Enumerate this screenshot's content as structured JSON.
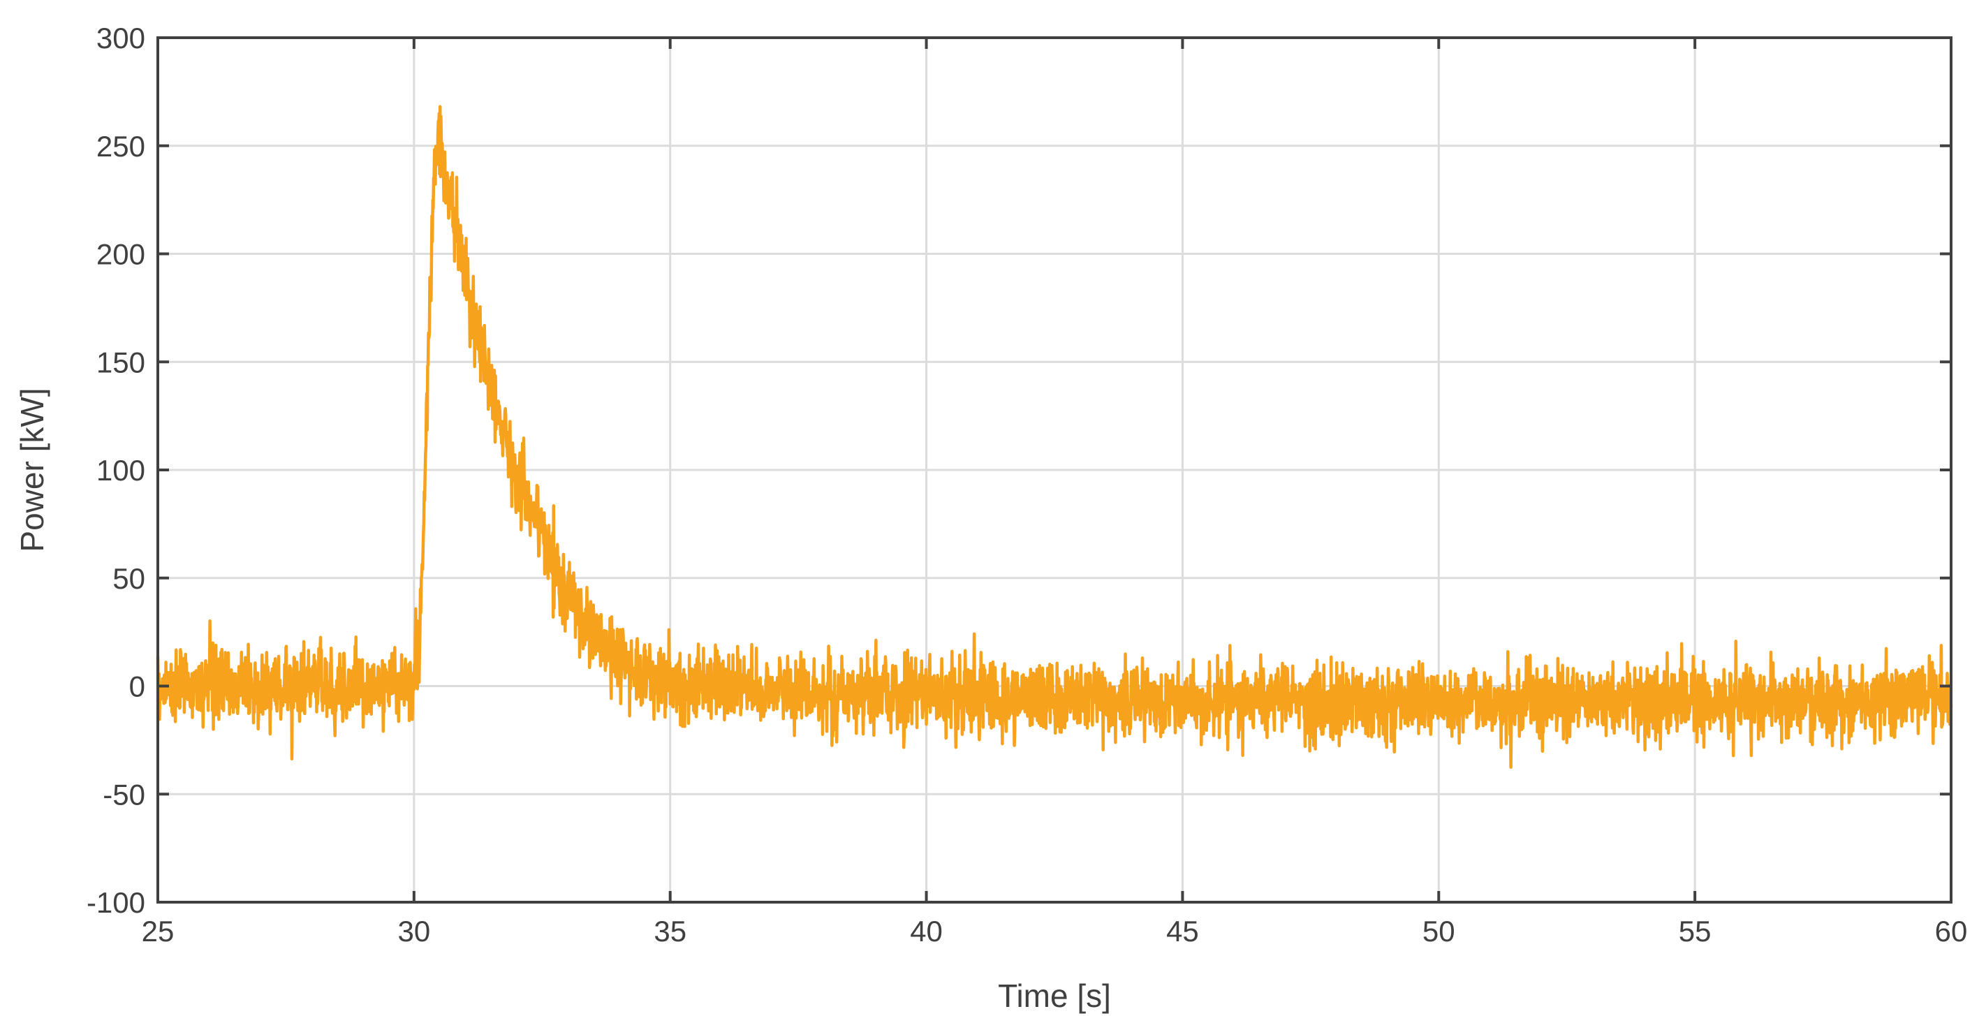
{
  "chart_data": {
    "type": "line",
    "title": "",
    "xlabel": "Time [s]",
    "ylabel": "Power [kW]",
    "xlim": [
      25,
      60
    ],
    "ylim": [
      -100,
      300
    ],
    "xticks": [
      25,
      30,
      35,
      40,
      45,
      50,
      55,
      60
    ],
    "yticks": [
      -100,
      -50,
      0,
      50,
      100,
      150,
      200,
      250,
      300
    ],
    "xtick_labels": [
      "25",
      "30",
      "35",
      "40",
      "45",
      "50",
      "55",
      "60"
    ],
    "ytick_labels": [
      "-100",
      "-50",
      "0",
      "50",
      "100",
      "150",
      "200",
      "250",
      "300"
    ],
    "grid": true,
    "legend": "none",
    "colors": {
      "line": "#f7a21d",
      "grid": "#dcdcdc",
      "axis": "#404040"
    },
    "series": [
      {
        "name": "",
        "x": [
          25,
          26,
          27,
          28,
          29,
          29.8,
          30,
          30.1,
          30.2,
          30.3,
          30.4,
          30.5,
          30.6,
          30.7,
          30.8,
          30.9,
          31,
          31.2,
          31.4,
          31.6,
          31.8,
          32,
          32.2,
          32.4,
          32.6,
          32.8,
          33,
          33.3,
          33.6,
          34,
          34.5,
          35,
          36,
          37,
          38,
          40,
          42,
          45,
          48,
          50,
          52,
          55,
          58,
          60
        ],
        "y": [
          0,
          0,
          -1,
          0,
          0,
          0,
          5,
          20,
          80,
          170,
          240,
          255,
          235,
          225,
          215,
          200,
          185,
          165,
          150,
          130,
          115,
          100,
          88,
          76,
          64,
          52,
          42,
          30,
          20,
          12,
          6,
          2,
          0,
          -2,
          -3,
          -4,
          -5,
          -6,
          -7,
          -7,
          -7,
          -7,
          -7,
          -6
        ]
      }
    ]
  }
}
